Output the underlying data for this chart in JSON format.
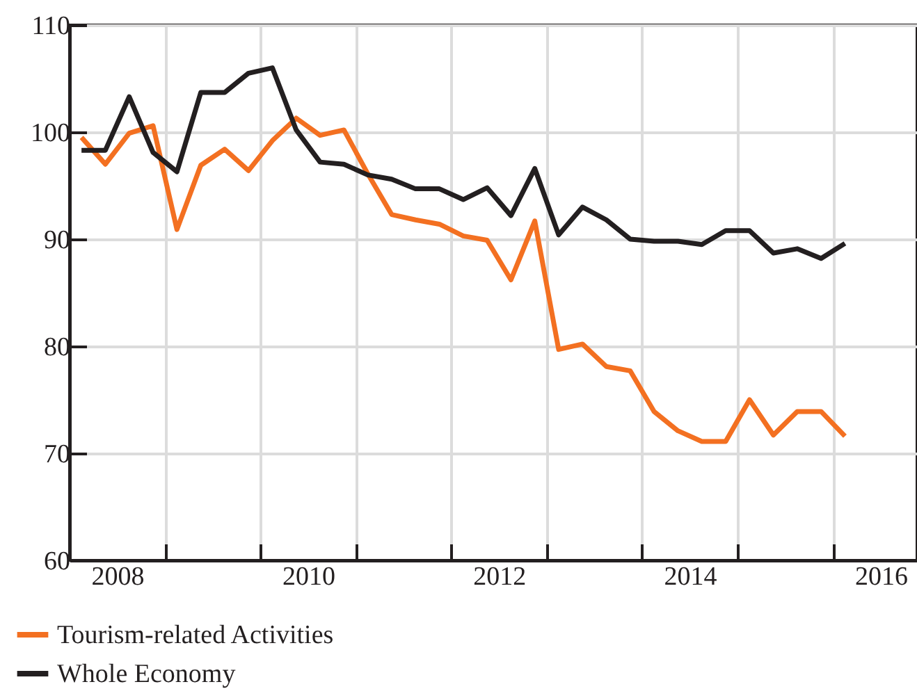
{
  "chart_data": {
    "type": "line",
    "x": [
      2008.125,
      2008.375,
      2008.625,
      2008.875,
      2009.125,
      2009.375,
      2009.625,
      2009.875,
      2010.125,
      2010.375,
      2010.625,
      2010.875,
      2011.125,
      2011.375,
      2011.625,
      2011.875,
      2012.125,
      2012.375,
      2012.625,
      2012.875,
      2013.125,
      2013.375,
      2013.625,
      2013.875,
      2014.125,
      2014.375,
      2014.625,
      2014.875,
      2015.125,
      2015.375,
      2015.625,
      2015.875,
      2016.125
    ],
    "series": [
      {
        "name": "Tourism-related Activities",
        "color": "#f37021",
        "values": [
          99.5,
          97.0,
          99.9,
          100.6,
          90.9,
          96.9,
          98.4,
          96.4,
          99.2,
          101.3,
          99.7,
          100.2,
          96.1,
          92.3,
          91.8,
          91.4,
          90.3,
          89.9,
          86.2,
          91.7,
          79.7,
          80.2,
          78.1,
          77.7,
          73.9,
          72.1,
          71.1,
          71.1,
          75.0,
          71.7,
          73.9,
          73.9,
          71.6
        ]
      },
      {
        "name": "Whole Economy",
        "color": "#231f20",
        "values": [
          98.3,
          98.3,
          103.3,
          98.1,
          96.3,
          103.7,
          103.7,
          105.5,
          106.0,
          100.2,
          97.2,
          97.0,
          96.0,
          95.6,
          94.7,
          94.7,
          93.7,
          94.8,
          92.2,
          96.6,
          90.4,
          93.0,
          91.8,
          90.0,
          89.8,
          89.8,
          89.5,
          90.8,
          90.8,
          88.7,
          89.1,
          88.2,
          89.6
        ]
      }
    ],
    "xlim": [
      2008,
      2016.88
    ],
    "xticks": [
      {
        "value": 2008.5,
        "label": "2008"
      },
      {
        "value": 2009,
        "label": null
      },
      {
        "value": 2010,
        "label": null
      },
      {
        "value": 2010.5,
        "label": "2010"
      },
      {
        "value": 2011,
        "label": null
      },
      {
        "value": 2012,
        "label": null
      },
      {
        "value": 2012.5,
        "label": "2012"
      },
      {
        "value": 2013,
        "label": null
      },
      {
        "value": 2014,
        "label": null
      },
      {
        "value": 2014.5,
        "label": "2014"
      },
      {
        "value": 2015,
        "label": null
      },
      {
        "value": 2016,
        "label": null
      },
      {
        "value": 2016.5,
        "label": "2016"
      }
    ],
    "ylim": [
      60,
      110
    ],
    "yticks": [
      60,
      70,
      80,
      90,
      100,
      110
    ],
    "grid": true,
    "legend": "bottom left",
    "line_style": "solid"
  }
}
